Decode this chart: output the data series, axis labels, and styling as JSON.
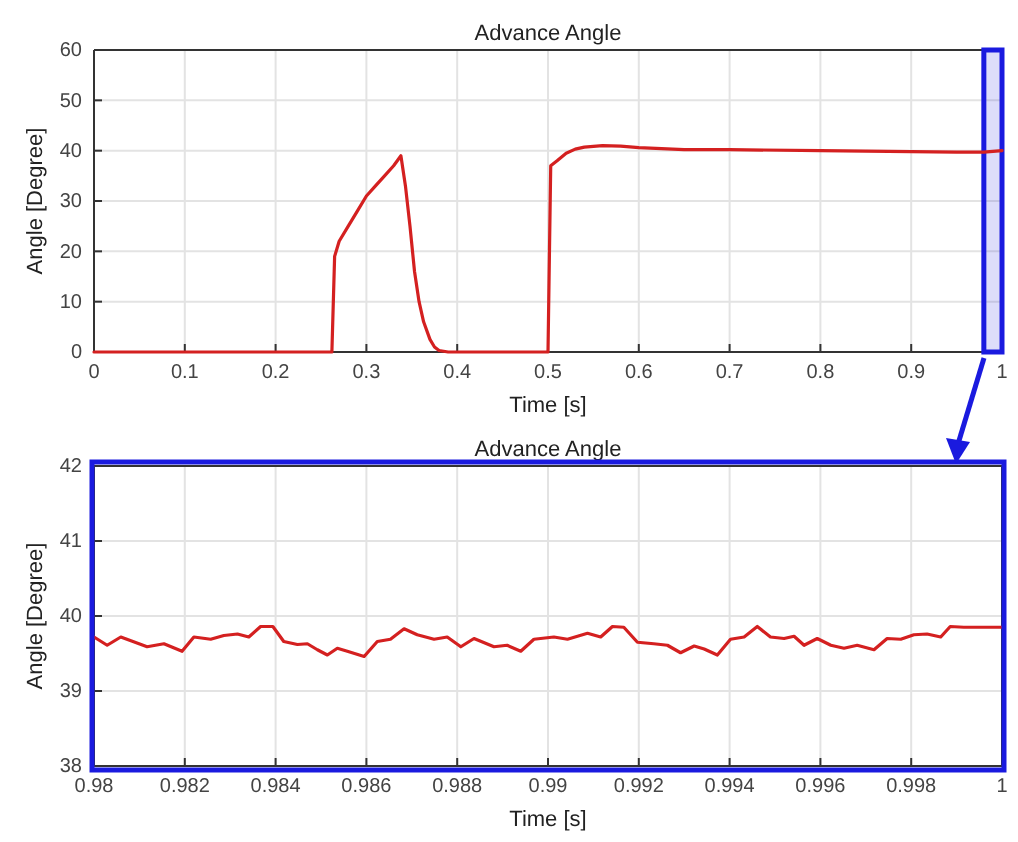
{
  "chart_data": [
    {
      "type": "line",
      "title": "Advance Angle",
      "xlabel": "Time [s]",
      "ylabel": "Angle [Degree]",
      "xlim": [
        0,
        1
      ],
      "ylim": [
        0,
        60
      ],
      "xticks": [
        0,
        0.1,
        0.2,
        0.3,
        0.4,
        0.5,
        0.6,
        0.7,
        0.8,
        0.9,
        1
      ],
      "yticks": [
        0,
        10,
        20,
        30,
        40,
        50,
        60
      ],
      "grid": true,
      "bands": [
        {
          "axis": "x",
          "from": 0.98,
          "to": 1,
          "color": "#1a1adf"
        }
      ],
      "series": [
        {
          "color": "#d42020",
          "x": [
            0,
            0.1,
            0.2,
            0.262,
            0.265,
            0.27,
            0.28,
            0.29,
            0.3,
            0.31,
            0.32,
            0.33,
            0.338,
            0.343,
            0.348,
            0.353,
            0.358,
            0.363,
            0.37,
            0.375,
            0.38,
            0.39,
            0.45,
            0.5,
            0.503,
            0.51,
            0.52,
            0.53,
            0.54,
            0.56,
            0.58,
            0.6,
            0.65,
            0.7,
            0.8,
            0.9,
            0.95,
            0.98,
            1
          ],
          "values": [
            0,
            0,
            0,
            0,
            19,
            22,
            25,
            28,
            31,
            33,
            35,
            37,
            39,
            33,
            25,
            16,
            10,
            6,
            2.5,
            1,
            0.3,
            0,
            0,
            0,
            37,
            38,
            39.5,
            40.3,
            40.7,
            41,
            40.9,
            40.6,
            40.2,
            40.2,
            40,
            39.8,
            39.7,
            39.7,
            40
          ]
        }
      ]
    },
    {
      "type": "line",
      "title": "Advance Angle",
      "xlabel": "Time [s]",
      "ylabel": "Angle [Degree]",
      "xlim": [
        0.98,
        1
      ],
      "ylim": [
        38,
        42
      ],
      "xticks": [
        0.98,
        0.982,
        0.984,
        0.986,
        0.988,
        0.99,
        0.992,
        0.994,
        0.996,
        0.998,
        1
      ],
      "yticks": [
        38,
        39,
        40,
        41,
        42
      ],
      "grid": true,
      "series": [
        {
          "color": "#d42020",
          "x": [
            0.98,
            0.98029,
            0.98059,
            0.98117,
            0.98154,
            0.98194,
            0.9822,
            0.98257,
            0.98286,
            0.98316,
            0.98341,
            0.98367,
            0.98394,
            0.98418,
            0.98448,
            0.9847,
            0.98492,
            0.98514,
            0.98536,
            0.98558,
            0.98595,
            0.98624,
            0.98653,
            0.98683,
            0.98712,
            0.98749,
            0.98778,
            0.98808,
            0.98837,
            0.98881,
            0.9891,
            0.9894,
            0.98969,
            0.99013,
            0.99043,
            0.99087,
            0.99116,
            0.99142,
            0.99167,
            0.99197,
            0.99233,
            0.99263,
            0.99292,
            0.99322,
            0.99344,
            0.99373,
            0.99402,
            0.99432,
            0.99461,
            0.9949,
            0.9952,
            0.99542,
            0.99564,
            0.99593,
            0.99623,
            0.99652,
            0.99681,
            0.99718,
            0.99747,
            0.99777,
            0.99806,
            0.99835,
            0.99865,
            0.99886,
            0.99916,
            1
          ],
          "values": [
            39.72,
            39.61,
            39.72,
            39.59,
            39.63,
            39.53,
            39.72,
            39.69,
            39.74,
            39.76,
            39.72,
            39.86,
            39.86,
            39.66,
            39.62,
            39.63,
            39.55,
            39.48,
            39.57,
            39.53,
            39.46,
            39.66,
            39.69,
            39.83,
            39.75,
            39.69,
            39.72,
            39.59,
            39.7,
            39.59,
            39.61,
            39.53,
            39.69,
            39.72,
            39.69,
            39.77,
            39.72,
            39.86,
            39.85,
            39.65,
            39.63,
            39.61,
            39.51,
            39.6,
            39.56,
            39.48,
            39.69,
            39.72,
            39.86,
            39.72,
            39.7,
            39.73,
            39.61,
            39.7,
            39.61,
            39.57,
            39.61,
            39.55,
            39.7,
            39.69,
            39.75,
            39.76,
            39.72,
            39.86,
            39.85,
            39.85
          ]
        }
      ]
    }
  ]
}
